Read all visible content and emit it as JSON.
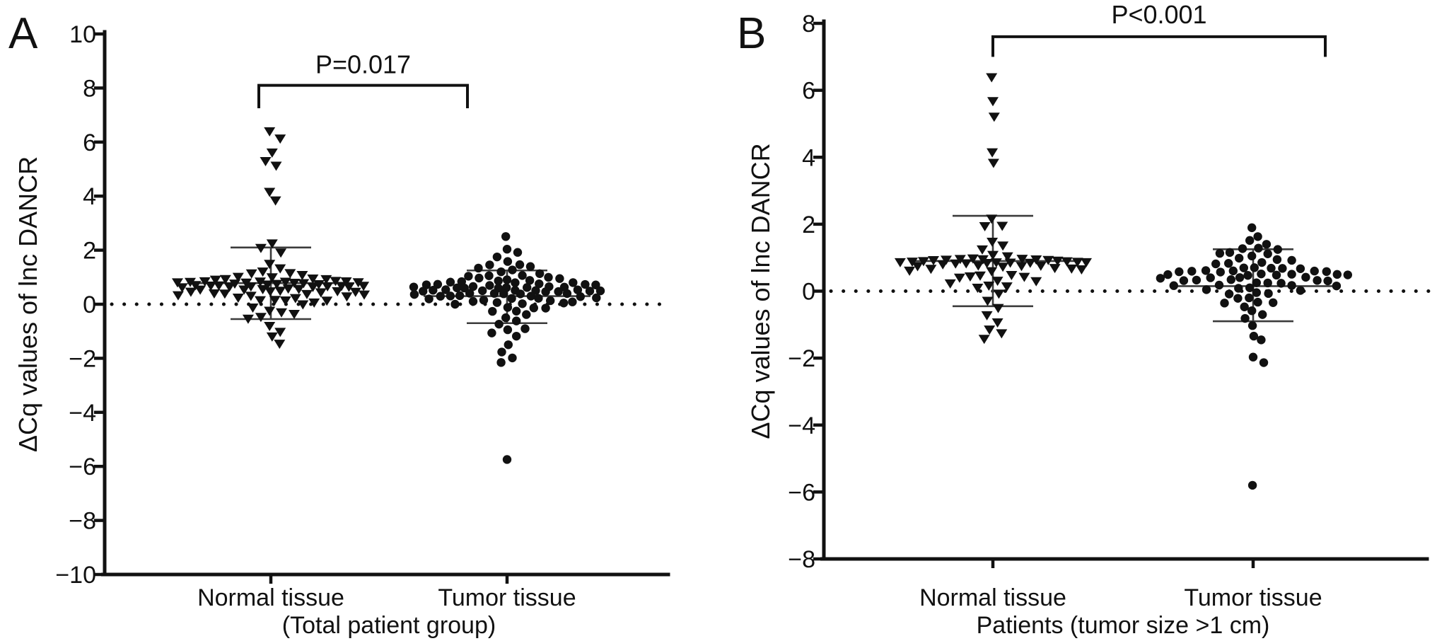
{
  "figure": {
    "background": "#ffffff",
    "ink_color": "#111111",
    "error_bar_color": "#3c3c3c"
  },
  "chart_data": [
    {
      "type": "scatter",
      "style": "beeswarm-dot-plot",
      "panel_label": "A",
      "significance_label": "P=0.017",
      "ylabel": "ΔCq values of lnc DANCR",
      "xlabel": "(Total patient group)",
      "categories": [
        "Normal tissue",
        "Tumor tissue"
      ],
      "ylim": [
        -10,
        10
      ],
      "yticks": [
        10,
        8,
        6,
        4,
        2,
        0,
        -2,
        -4,
        -6,
        -8,
        -10
      ],
      "zero_line": "dotted",
      "legend": "none",
      "grid": false,
      "series": [
        {
          "name": "Normal tissue",
          "marker": "triangle-down",
          "mean": 0.78,
          "error_top": 2.1,
          "error_bottom": -0.55,
          "values": [
            6.35,
            6.1,
            5.6,
            5.3,
            5.15,
            4.2,
            3.9,
            2.2,
            2.05,
            1.9,
            1.5,
            1.35,
            1.25,
            1.2,
            1.1,
            1.05,
            1.0,
            1.0,
            0.95,
            0.95,
            0.9,
            0.9,
            0.9,
            0.85,
            0.85,
            0.85,
            0.85,
            0.8,
            0.8,
            0.8,
            0.8,
            0.8,
            0.75,
            0.75,
            0.75,
            0.75,
            0.75,
            0.75,
            0.7,
            0.7,
            0.7,
            0.7,
            0.7,
            0.65,
            0.65,
            0.65,
            0.65,
            0.6,
            0.6,
            0.6,
            0.55,
            0.55,
            0.55,
            0.5,
            0.5,
            0.5,
            0.45,
            0.45,
            0.45,
            0.4,
            0.4,
            0.4,
            0.35,
            0.35,
            0.3,
            0.3,
            0.25,
            0.25,
            0.2,
            0.2,
            0.1,
            0.1,
            0.05,
            0.0,
            -0.1,
            -0.2,
            -0.3,
            -0.35,
            -0.5,
            -0.55,
            -0.8,
            -1.0,
            -1.15,
            -1.4
          ]
        },
        {
          "name": "Tumor tissue",
          "marker": "circle",
          "mean": 0.3,
          "error_top": 1.25,
          "error_bottom": -0.7,
          "values": [
            2.45,
            2.0,
            1.9,
            1.75,
            1.6,
            1.5,
            1.45,
            1.4,
            1.3,
            1.25,
            1.2,
            1.15,
            1.1,
            1.05,
            1.0,
            1.0,
            0.95,
            0.95,
            0.9,
            0.9,
            0.85,
            0.85,
            0.8,
            0.8,
            0.8,
            0.75,
            0.75,
            0.75,
            0.7,
            0.7,
            0.7,
            0.65,
            0.65,
            0.65,
            0.65,
            0.6,
            0.6,
            0.6,
            0.6,
            0.55,
            0.55,
            0.55,
            0.55,
            0.5,
            0.5,
            0.5,
            0.5,
            0.5,
            0.45,
            0.45,
            0.45,
            0.45,
            0.4,
            0.4,
            0.4,
            0.35,
            0.35,
            0.35,
            0.3,
            0.3,
            0.3,
            0.25,
            0.25,
            0.25,
            0.2,
            0.2,
            0.15,
            0.15,
            0.1,
            0.1,
            0.05,
            0.05,
            0.0,
            0.0,
            -0.1,
            -0.1,
            -0.2,
            -0.2,
            -0.3,
            -0.4,
            -0.5,
            -0.6,
            -0.7,
            -0.85,
            -1.0,
            -1.1,
            -1.2,
            -1.5,
            -1.75,
            -1.95,
            -2.1,
            -5.8
          ]
        }
      ]
    },
    {
      "type": "scatter",
      "style": "beeswarm-dot-plot",
      "panel_label": "B",
      "significance_label": "P<0.001",
      "ylabel": "ΔCq values of lnc DANCR",
      "xlabel": "Patients (tumor size >1 cm)",
      "categories": [
        "Normal tissue",
        "Tumor tissue"
      ],
      "ylim": [
        -8,
        8
      ],
      "yticks": [
        8,
        6,
        4,
        2,
        0,
        -2,
        -4,
        -6,
        -8
      ],
      "zero_line": "dotted",
      "legend": "none",
      "grid": false,
      "series": [
        {
          "name": "Normal tissue",
          "marker": "triangle-down",
          "mean": 0.9,
          "error_top": 2.25,
          "error_bottom": -0.45,
          "values": [
            6.35,
            5.65,
            5.2,
            4.15,
            3.85,
            2.2,
            2.0,
            1.9,
            1.45,
            1.35,
            1.25,
            1.1,
            1.0,
            1.0,
            1.0,
            0.95,
            0.95,
            0.95,
            0.95,
            0.9,
            0.9,
            0.9,
            0.9,
            0.9,
            0.9,
            0.9,
            0.9,
            0.85,
            0.85,
            0.85,
            0.85,
            0.85,
            0.85,
            0.8,
            0.8,
            0.8,
            0.8,
            0.75,
            0.75,
            0.75,
            0.7,
            0.7,
            0.65,
            0.65,
            0.6,
            0.6,
            0.5,
            0.5,
            0.45,
            0.4,
            0.4,
            0.3,
            0.3,
            0.25,
            0.2,
            0.15,
            0.1,
            -0.1,
            -0.3,
            -0.5,
            -0.7,
            -0.9,
            -1.1,
            -1.3,
            -1.45
          ]
        },
        {
          "name": "Tumor tissue",
          "marker": "circle",
          "mean": 0.15,
          "error_top": 1.25,
          "error_bottom": -0.9,
          "values": [
            1.85,
            1.6,
            1.5,
            1.4,
            1.3,
            1.3,
            1.2,
            1.2,
            1.1,
            1.1,
            1.05,
            1.0,
            0.95,
            0.9,
            0.9,
            0.8,
            0.8,
            0.7,
            0.7,
            0.7,
            0.65,
            0.65,
            0.65,
            0.6,
            0.6,
            0.6,
            0.6,
            0.55,
            0.55,
            0.55,
            0.5,
            0.5,
            0.5,
            0.5,
            0.45,
            0.45,
            0.45,
            0.4,
            0.4,
            0.4,
            0.35,
            0.35,
            0.3,
            0.3,
            0.3,
            0.25,
            0.25,
            0.2,
            0.2,
            0.2,
            0.15,
            0.15,
            0.1,
            0.1,
            0.05,
            0.0,
            0.0,
            -0.1,
            -0.1,
            -0.2,
            -0.2,
            -0.3,
            -0.3,
            -0.4,
            -0.5,
            -0.6,
            -0.7,
            -0.8,
            -1.0,
            -1.3,
            -1.5,
            -2.0,
            -2.15,
            -5.8
          ]
        }
      ]
    }
  ]
}
